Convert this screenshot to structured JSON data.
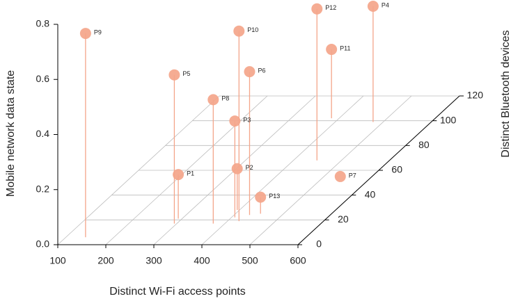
{
  "chart_data": {
    "type": "scatter3d",
    "xlabel": "Distinct Wi-Fi access points",
    "ylabel": "Distinct Bluetooth devices",
    "zlabel": "Mobile network data state",
    "labels": [
      "P1",
      "P2",
      "P3",
      "P4",
      "P5",
      "P6",
      "P7",
      "P8",
      "P9",
      "P10",
      "P11",
      "P12",
      "P13"
    ],
    "x": [
      292,
      395,
      407,
      479,
      295,
      432,
      534,
      376,
      141,
      424,
      384,
      449,
      452
    ],
    "y": [
      21,
      28,
      22,
      99,
      17,
      24,
      55,
      17,
      6,
      19,
      102,
      68,
      25
    ],
    "z": [
      0.16,
      0.15,
      0.35,
      0.42,
      0.54,
      0.52,
      0.0,
      0.45,
      0.74,
      0.69,
      0.25,
      0.55,
      0.06
    ],
    "color": "#f4a58a",
    "xlim": [
      100,
      600
    ],
    "xticks": [
      100,
      200,
      300,
      400,
      500,
      600
    ],
    "ylim": [
      0,
      120
    ],
    "yticks": [
      0,
      20,
      40,
      60,
      80,
      100,
      120
    ],
    "zlim": [
      0,
      0.8
    ],
    "zticks": [
      {
        "value": 0,
        "label": "0.0"
      },
      0.2,
      0.4,
      0.6,
      0.8
    ],
    "grid": true
  }
}
